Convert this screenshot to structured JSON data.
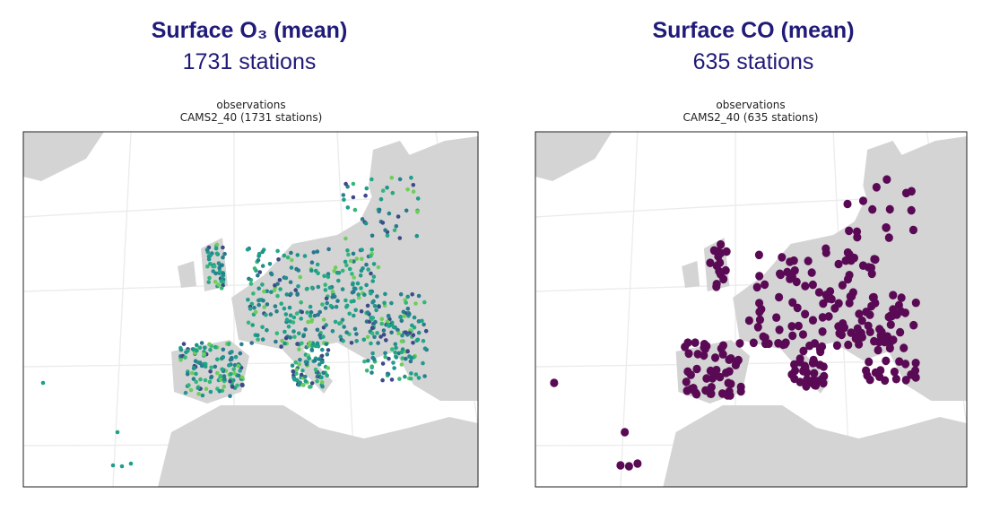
{
  "panels": [
    {
      "title": "Surface O₃ (mean)",
      "subtitle": "1731 stations",
      "map_title": "observations",
      "map_subtitle": "CAMS2_40 (1731 stations)"
    },
    {
      "title": "Surface CO (mean)",
      "subtitle": "635 stations",
      "map_title": "observations",
      "map_subtitle": "CAMS2_40 (635 stations)"
    }
  ]
}
